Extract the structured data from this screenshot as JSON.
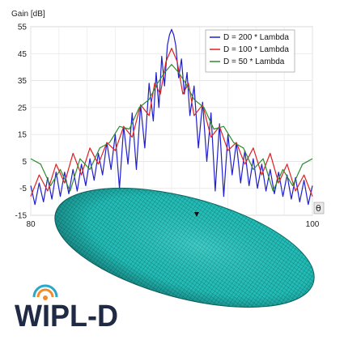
{
  "chart_data": {
    "type": "line",
    "ylabel": "Gain [dB]",
    "xlabel": "",
    "x_axis_unit": "θ",
    "xlim": [
      80,
      100
    ],
    "ylim": [
      -15,
      55
    ],
    "x_ticks": [
      80,
      100
    ],
    "y_ticks": [
      55,
      45,
      35,
      25,
      15,
      5,
      -5,
      -15
    ],
    "grid": true,
    "legend_position": "top-right",
    "series": [
      {
        "name": "D = 200 * Lambda",
        "color": "#1f1fcc",
        "x": [
          80,
          80.3,
          80.6,
          80.9,
          81.2,
          81.5,
          81.8,
          82.1,
          82.4,
          82.7,
          83,
          83.3,
          83.6,
          83.9,
          84.2,
          84.5,
          84.8,
          85.1,
          85.4,
          85.7,
          86,
          86.3,
          86.6,
          86.9,
          87.2,
          87.5,
          87.8,
          88.1,
          88.4,
          88.7,
          88.9,
          89.1,
          89.3,
          89.5,
          89.7,
          89.85,
          90,
          90.15,
          90.3,
          90.5,
          90.7,
          90.9,
          91.1,
          91.3,
          91.6,
          91.9,
          92.2,
          92.5,
          92.8,
          93.1,
          93.4,
          93.7,
          94,
          94.3,
          94.6,
          94.9,
          95.2,
          95.5,
          95.8,
          96.1,
          96.4,
          96.7,
          97,
          97.3,
          97.6,
          97.9,
          98.2,
          98.5,
          98.8,
          99.1,
          99.4,
          99.7,
          100
        ],
        "y": [
          -4,
          -11,
          -3,
          -10,
          -1,
          -9,
          1,
          -8,
          1,
          -7,
          2,
          -6,
          4,
          -4,
          6,
          -2,
          8,
          0,
          12,
          2,
          15,
          -5,
          18,
          4,
          23,
          2,
          26,
          10,
          34,
          20,
          38,
          25,
          44,
          33,
          48,
          52,
          54,
          52,
          48,
          36,
          43,
          30,
          38,
          22,
          33,
          10,
          27,
          5,
          23,
          -6,
          19,
          -8,
          15,
          0,
          12,
          -3,
          9,
          -4,
          6,
          -5,
          4,
          -6,
          2,
          -7,
          1,
          -8,
          0,
          -9,
          -1,
          -10,
          -2,
          -11,
          -4
        ]
      },
      {
        "name": "D = 100 * Lambda",
        "color": "#e02020",
        "x": [
          80,
          80.6,
          81.2,
          81.8,
          82.4,
          83,
          83.6,
          84.2,
          84.8,
          85.4,
          86,
          86.6,
          87.2,
          87.8,
          88.4,
          88.8,
          89.2,
          89.6,
          90,
          90.4,
          90.8,
          91.2,
          91.6,
          92.2,
          92.8,
          93.4,
          94,
          94.6,
          95.2,
          95.8,
          96.4,
          97,
          97.6,
          98.2,
          98.8,
          99.4,
          100
        ],
        "y": [
          -8,
          0,
          -6,
          4,
          -3,
          8,
          0,
          10,
          4,
          12,
          9,
          18,
          14,
          26,
          22,
          34,
          30,
          42,
          47,
          42,
          30,
          34,
          22,
          26,
          14,
          18,
          9,
          12,
          4,
          10,
          0,
          8,
          -3,
          4,
          -6,
          0,
          -8
        ]
      },
      {
        "name": "D = 50 * Lambda",
        "color": "#2e8b2e",
        "x": [
          80,
          80.7,
          81.4,
          82.1,
          82.8,
          83.5,
          84.2,
          84.9,
          85.6,
          86.3,
          87,
          87.7,
          88.4,
          89,
          89.5,
          90,
          90.5,
          91,
          91.6,
          92.3,
          93,
          93.7,
          94.4,
          95.1,
          95.8,
          96.5,
          97.2,
          97.9,
          98.6,
          99.3,
          100
        ],
        "y": [
          6,
          4,
          -4,
          2,
          -6,
          6,
          2,
          10,
          12,
          18,
          17,
          25,
          28,
          34,
          38,
          41,
          38,
          34,
          28,
          25,
          17,
          18,
          12,
          10,
          2,
          6,
          -6,
          2,
          -4,
          4,
          6
        ]
      }
    ]
  },
  "logo": {
    "text_left": "WiPL",
    "text_right": "D",
    "colors": [
      "#1f2a44",
      "#2aa7c9",
      "#f28c28"
    ]
  },
  "model": {
    "description_color": "#1fb5b0"
  }
}
